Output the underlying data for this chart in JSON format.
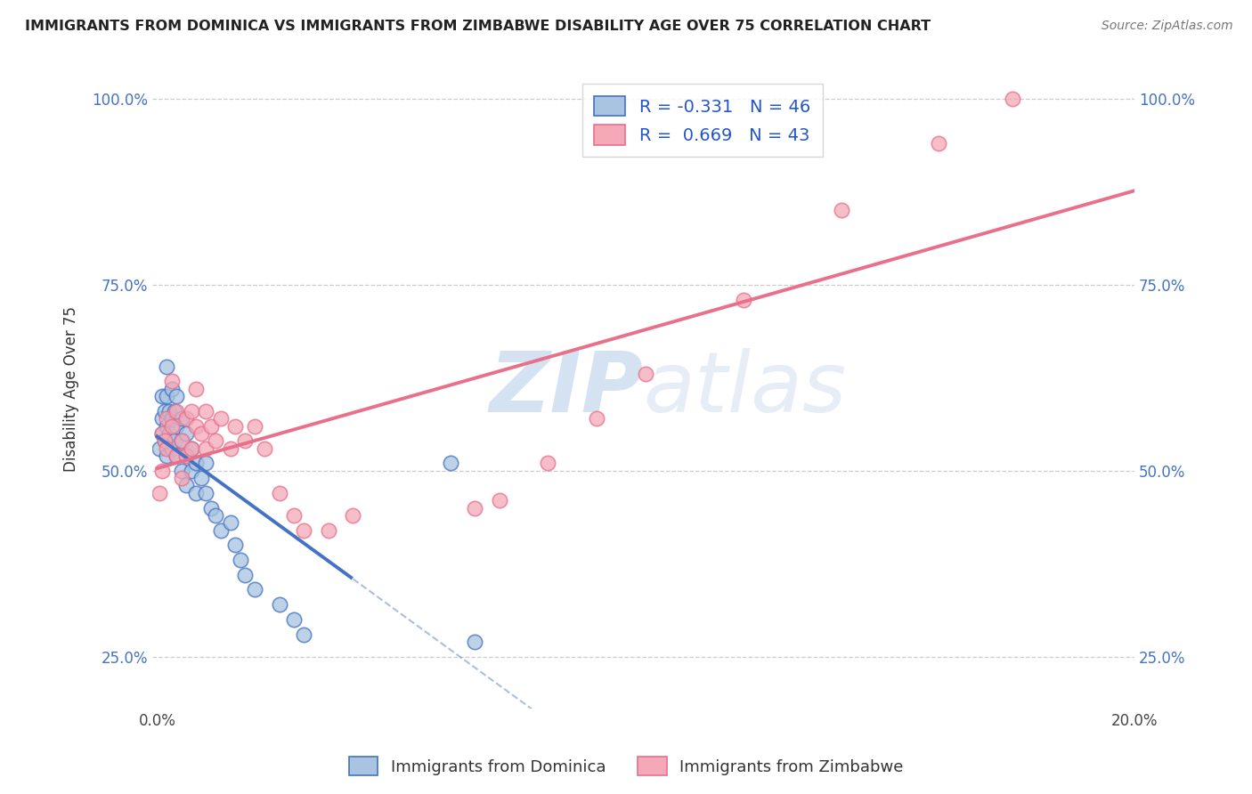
{
  "title": "IMMIGRANTS FROM DOMINICA VS IMMIGRANTS FROM ZIMBABWE DISABILITY AGE OVER 75 CORRELATION CHART",
  "source": "Source: ZipAtlas.com",
  "ylabel": "Disability Age Over 75",
  "xlim": [
    -0.001,
    0.2
  ],
  "ylim": [
    0.18,
    1.04
  ],
  "xticks": [
    0.0,
    0.05,
    0.1,
    0.15,
    0.2
  ],
  "xticklabels": [
    "0.0%",
    "",
    "",
    "",
    "20.0%"
  ],
  "yticks": [
    0.25,
    0.5,
    0.75,
    1.0
  ],
  "yticklabels": [
    "25.0%",
    "50.0%",
    "75.0%",
    "100.0%"
  ],
  "dominica_color": "#a8c4e0",
  "zimbabwe_color": "#f4a8b8",
  "dominica_label": "Immigrants from Dominica",
  "zimbabwe_label": "Immigrants from Zimbabwe",
  "dominica_R": -0.331,
  "dominica_N": 46,
  "zimbabwe_R": 0.669,
  "zimbabwe_N": 43,
  "dominica_line_color": "#4472c4",
  "zimbabwe_line_color": "#e8708a",
  "legend_R_color": "#2255cc",
  "watermark_zip": "ZIP",
  "watermark_atlas": "atlas",
  "dominica_x": [
    0.0005,
    0.001,
    0.001,
    0.001,
    0.0015,
    0.0015,
    0.002,
    0.002,
    0.002,
    0.002,
    0.0025,
    0.0025,
    0.003,
    0.003,
    0.003,
    0.0035,
    0.0035,
    0.004,
    0.004,
    0.004,
    0.005,
    0.005,
    0.005,
    0.006,
    0.006,
    0.006,
    0.007,
    0.007,
    0.008,
    0.008,
    0.009,
    0.01,
    0.01,
    0.011,
    0.012,
    0.013,
    0.015,
    0.016,
    0.017,
    0.018,
    0.02,
    0.025,
    0.028,
    0.03,
    0.06,
    0.065
  ],
  "dominica_y": [
    0.53,
    0.57,
    0.6,
    0.55,
    0.54,
    0.58,
    0.56,
    0.6,
    0.64,
    0.52,
    0.55,
    0.58,
    0.53,
    0.57,
    0.61,
    0.54,
    0.58,
    0.52,
    0.56,
    0.6,
    0.54,
    0.57,
    0.5,
    0.52,
    0.55,
    0.48,
    0.5,
    0.53,
    0.47,
    0.51,
    0.49,
    0.47,
    0.51,
    0.45,
    0.44,
    0.42,
    0.43,
    0.4,
    0.38,
    0.36,
    0.34,
    0.32,
    0.3,
    0.28,
    0.51,
    0.27
  ],
  "zimbabwe_x": [
    0.0005,
    0.001,
    0.001,
    0.0015,
    0.002,
    0.002,
    0.003,
    0.003,
    0.004,
    0.004,
    0.005,
    0.005,
    0.006,
    0.006,
    0.007,
    0.007,
    0.008,
    0.008,
    0.009,
    0.01,
    0.01,
    0.011,
    0.012,
    0.013,
    0.015,
    0.016,
    0.018,
    0.02,
    0.022,
    0.025,
    0.028,
    0.03,
    0.035,
    0.04,
    0.065,
    0.07,
    0.08,
    0.09,
    0.1,
    0.12,
    0.14,
    0.16,
    0.175
  ],
  "zimbabwe_y": [
    0.47,
    0.5,
    0.55,
    0.54,
    0.53,
    0.57,
    0.56,
    0.62,
    0.58,
    0.52,
    0.54,
    0.49,
    0.52,
    0.57,
    0.53,
    0.58,
    0.56,
    0.61,
    0.55,
    0.53,
    0.58,
    0.56,
    0.54,
    0.57,
    0.53,
    0.56,
    0.54,
    0.56,
    0.53,
    0.47,
    0.44,
    0.42,
    0.42,
    0.44,
    0.45,
    0.46,
    0.51,
    0.57,
    0.63,
    0.73,
    0.85,
    0.94,
    1.0
  ],
  "background_color": "#ffffff",
  "grid_color": "#cccccc"
}
